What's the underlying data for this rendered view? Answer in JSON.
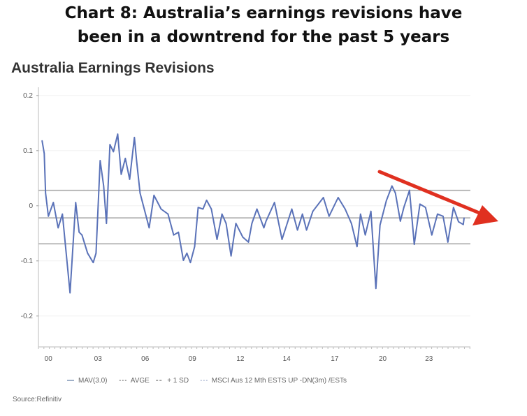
{
  "headline": {
    "line1": "Chart 8: Australia’s earnings revisions have",
    "line2": "been in a downtrend for the past 5 years"
  },
  "chart_data": {
    "type": "line",
    "title": "Australia Earnings Revisions",
    "xlabel": "",
    "ylabel": "",
    "ylim": [
      -0.256,
      0.215
    ],
    "xlim": [
      1999.4,
      2025.5
    ],
    "y_ticks": [
      {
        "label": "0.2",
        "value": 0.2
      },
      {
        "label": "0.1",
        "value": 0.1
      },
      {
        "label": "0",
        "value": 0
      },
      {
        "label": "-0.1",
        "value": -0.1
      },
      {
        "label": "-0.2",
        "value": -0.2
      }
    ],
    "x_ticks": [
      {
        "label": "00",
        "value": 2000
      },
      {
        "label": "03",
        "value": 2003
      },
      {
        "label": "06",
        "value": 2005.85
      },
      {
        "label": "09",
        "value": 2008.7
      },
      {
        "label": "12",
        "value": 2011.6
      },
      {
        "label": "14",
        "value": 2014.4
      },
      {
        "label": "17",
        "value": 2017.3
      },
      {
        "label": "20",
        "value": 2020.2
      },
      {
        "label": "23",
        "value": 2023
      }
    ],
    "reference_lines": [
      {
        "name": "+1 SD",
        "value": 0.028
      },
      {
        "name": "AVGE",
        "value": -0.022
      },
      {
        "name": "-1 SD",
        "value": -0.069
      }
    ],
    "series": [
      {
        "name": "MAV(3.0)",
        "color": "#5a72b8",
        "x": [
          1999.62,
          1999.75,
          1999.83,
          2000.0,
          2000.3,
          2000.59,
          2000.85,
          2001.31,
          2001.65,
          2001.86,
          2002.03,
          2002.37,
          2002.71,
          2002.88,
          2003.13,
          2003.34,
          2003.51,
          2003.72,
          2003.93,
          2004.19,
          2004.4,
          2004.65,
          2004.91,
          2005.2,
          2005.33,
          2005.54,
          2006.09,
          2006.38,
          2006.81,
          2007.23,
          2007.57,
          2007.86,
          2008.16,
          2008.37,
          2008.58,
          2008.84,
          2009.05,
          2009.34,
          2009.56,
          2009.85,
          2010.19,
          2010.49,
          2010.74,
          2011.04,
          2011.33,
          2011.75,
          2012.09,
          2012.3,
          2012.6,
          2013.02,
          2013.15,
          2013.66,
          2014.12,
          2014.71,
          2015.05,
          2015.35,
          2015.6,
          2015.98,
          2016.62,
          2016.96,
          2017.51,
          2017.93,
          2018.31,
          2018.65,
          2018.86,
          2019.15,
          2019.49,
          2019.79,
          2020.04,
          2020.42,
          2020.76,
          2020.97,
          2021.27,
          2021.48,
          2021.82,
          2022.11,
          2022.45,
          2022.79,
          2023.17,
          2023.51,
          2023.85,
          2024.14,
          2024.48,
          2024.78,
          2025.07,
          2025.12
        ],
        "values": [
          0.118,
          0.095,
          0.023,
          -0.019,
          0.006,
          -0.04,
          -0.015,
          -0.158,
          0.006,
          -0.048,
          -0.053,
          -0.086,
          -0.103,
          -0.086,
          0.082,
          0.036,
          -0.032,
          0.111,
          0.098,
          0.13,
          0.057,
          0.086,
          0.048,
          0.124,
          0.082,
          0.023,
          -0.04,
          0.019,
          -0.006,
          -0.015,
          -0.053,
          -0.048,
          -0.099,
          -0.086,
          -0.103,
          -0.074,
          -0.003,
          -0.006,
          0.01,
          -0.006,
          -0.061,
          -0.015,
          -0.032,
          -0.091,
          -0.032,
          -0.057,
          -0.066,
          -0.032,
          -0.006,
          -0.04,
          -0.028,
          0.006,
          -0.061,
          -0.006,
          -0.044,
          -0.015,
          -0.044,
          -0.01,
          0.015,
          -0.019,
          0.015,
          -0.006,
          -0.032,
          -0.074,
          -0.015,
          -0.053,
          -0.01,
          -0.15,
          -0.035,
          0.009,
          0.036,
          0.023,
          -0.028,
          -0.003,
          0.028,
          -0.07,
          0.003,
          -0.003,
          -0.053,
          -0.015,
          -0.019,
          -0.066,
          -0.003,
          -0.029,
          -0.034,
          -0.022
        ]
      }
    ],
    "legend": [
      {
        "label": "MAV(3.0)",
        "color": "#9fb0c8",
        "dash": "solid"
      },
      {
        "label": "AVGE",
        "color": "#aaaaaa",
        "dash": "dotted"
      },
      {
        "label": "+ 1 SD",
        "color": "#aaaaaa",
        "dash": "dashed"
      },
      {
        "label": "MSCI Aus 12 Mth ESTS UP -DN(3m) /ESTs",
        "color": "#c5cde0",
        "dash": "dotted"
      }
    ],
    "legend_position": "bottom",
    "annotation": {
      "type": "arrow",
      "color": "#e03020",
      "meaning": "downtrend"
    },
    "source": "Source:Refinitiv"
  }
}
